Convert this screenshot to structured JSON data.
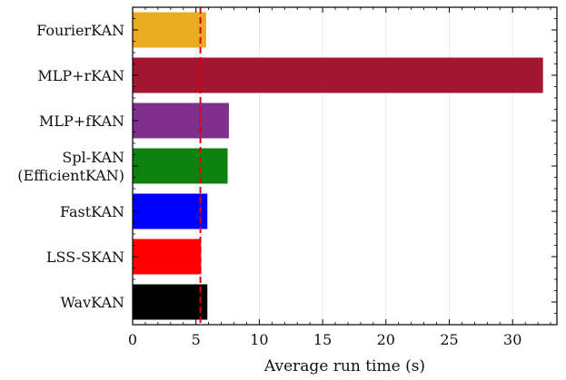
{
  "chart_data": {
    "type": "bar",
    "orientation": "horizontal",
    "title": "",
    "xlabel": "Average run time (s)",
    "ylabel": "",
    "xlim": [
      0,
      33.5
    ],
    "xticks": [
      0,
      5,
      10,
      15,
      20,
      25,
      30
    ],
    "grid": "vertical",
    "categories": [
      {
        "label": [
          "FourierKAN"
        ],
        "value": 5.8,
        "color": "#EAAA22"
      },
      {
        "label": [
          "MLP+rKAN"
        ],
        "value": 32.4,
        "color": "#A31532"
      },
      {
        "label": [
          "MLP+fKAN"
        ],
        "value": 7.6,
        "color": "#7F308D"
      },
      {
        "label": [
          "Spl-KAN",
          "(EfficientKAN)"
        ],
        "value": 7.5,
        "color": "#0D810D"
      },
      {
        "label": [
          "FastKAN"
        ],
        "value": 5.9,
        "color": "#0000FF"
      },
      {
        "label": [
          "LSS-SKAN"
        ],
        "value": 5.4,
        "color": "#FF0000"
      },
      {
        "label": [
          "WavKAN"
        ],
        "value": 5.9,
        "color": "#000000"
      }
    ],
    "reference_line": {
      "value": 5.35,
      "color": "#E00000",
      "style": "dashed"
    }
  }
}
